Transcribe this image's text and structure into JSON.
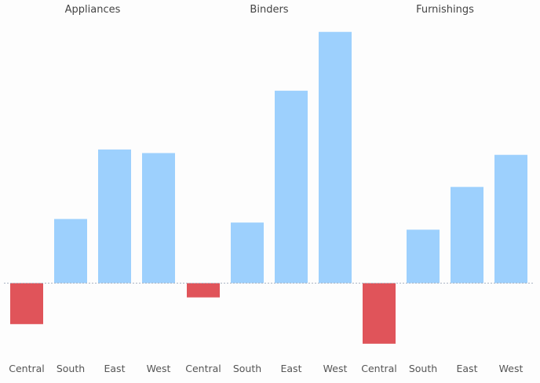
{
  "chart_data": {
    "type": "bar",
    "panels": [
      {
        "title": "Appliances",
        "categories": [
          "Central",
          "South",
          "East",
          "West"
        ],
        "values": [
          -2.3,
          3.6,
          7.5,
          7.3
        ]
      },
      {
        "title": "Binders",
        "categories": [
          "Central",
          "South",
          "East",
          "West"
        ],
        "values": [
          -0.8,
          3.4,
          10.8,
          14.1
        ]
      },
      {
        "title": "Furnishings",
        "categories": [
          "Central",
          "South",
          "East",
          "West"
        ],
        "values": [
          -3.4,
          3.0,
          5.4,
          7.2
        ]
      }
    ],
    "ylim": [
      -5.3,
      14.1
    ],
    "baseline_style": "dotted",
    "grid": false,
    "legend": "none",
    "colors": {
      "positive": "#9dd0fd",
      "negative": "#e0545a",
      "baseline": "#aab4c4"
    }
  }
}
